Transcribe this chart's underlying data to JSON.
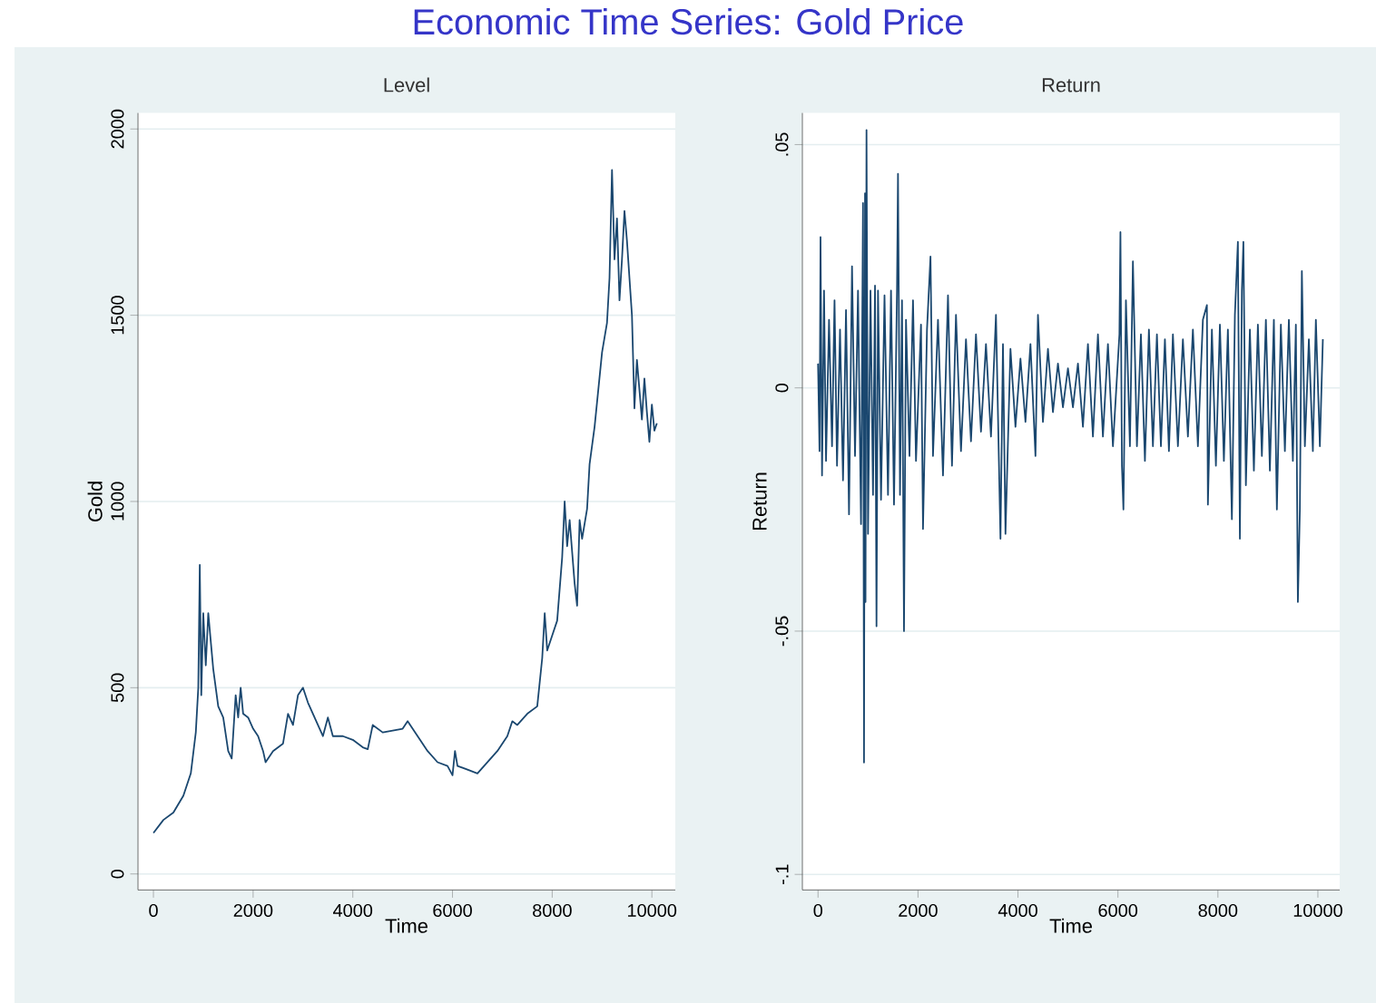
{
  "chart_data": [
    {
      "type": "line",
      "title": "Level",
      "xlabel": "Time",
      "ylabel": "Gold",
      "color": "#1a476f",
      "grid": "y",
      "marker": "none",
      "line_style": "solid",
      "annotations": [
        "Economic Time Series: Gold Price"
      ],
      "xlim": [
        -310,
        10470
      ],
      "ylim": [
        -43,
        2043
      ],
      "xticks": [
        0,
        2000,
        4000,
        6000,
        8000,
        10000
      ],
      "yticks": [
        0,
        500,
        1000,
        1500,
        2000
      ],
      "x": [
        0,
        200,
        400,
        600,
        750,
        850,
        900,
        930,
        960,
        1000,
        1050,
        1100,
        1200,
        1300,
        1400,
        1500,
        1570,
        1650,
        1700,
        1750,
        1800,
        1900,
        2000,
        2100,
        2200,
        2250,
        2400,
        2600,
        2700,
        2800,
        2900,
        3000,
        3100,
        3300,
        3400,
        3500,
        3600,
        3800,
        4000,
        4200,
        4300,
        4400,
        4600,
        4800,
        5000,
        5100,
        5300,
        5500,
        5700,
        5900,
        6000,
        6050,
        6100,
        6300,
        6500,
        6700,
        6900,
        7100,
        7200,
        7300,
        7500,
        7700,
        7800,
        7850,
        7900,
        8000,
        8100,
        8200,
        8250,
        8300,
        8350,
        8450,
        8500,
        8550,
        8600,
        8700,
        8750,
        8850,
        9000,
        9100,
        9150,
        9200,
        9250,
        9300,
        9350,
        9400,
        9450,
        9500,
        9600,
        9650,
        9700,
        9800,
        9850,
        9900,
        9950,
        10000,
        10050,
        10100
      ],
      "values": [
        110,
        145,
        165,
        210,
        270,
        380,
        500,
        830,
        480,
        700,
        560,
        700,
        550,
        450,
        420,
        330,
        310,
        480,
        420,
        500,
        430,
        420,
        390,
        370,
        330,
        300,
        330,
        350,
        430,
        400,
        480,
        500,
        460,
        400,
        370,
        420,
        370,
        370,
        360,
        340,
        335,
        400,
        380,
        385,
        390,
        410,
        370,
        330,
        300,
        290,
        265,
        330,
        290,
        280,
        270,
        300,
        330,
        370,
        410,
        400,
        430,
        450,
        580,
        700,
        600,
        640,
        680,
        850,
        1000,
        880,
        950,
        780,
        720,
        950,
        900,
        980,
        1100,
        1200,
        1400,
        1480,
        1600,
        1890,
        1650,
        1760,
        1540,
        1650,
        1780,
        1700,
        1500,
        1250,
        1380,
        1220,
        1330,
        1240,
        1160,
        1260,
        1190,
        1210
      ]
    },
    {
      "type": "line",
      "title": "Return",
      "xlabel": "Time",
      "ylabel": "Return",
      "color": "#1a476f",
      "grid": "y",
      "marker": "none",
      "line_style": "solid",
      "xlim": [
        -313,
        10437
      ],
      "ylim": [
        -0.1032,
        0.0565
      ],
      "xticks": [
        0,
        2000,
        4000,
        6000,
        8000,
        10000
      ],
      "yticks": [
        {
          "value": -0.1,
          "label": "-.1"
        },
        {
          "value": -0.05,
          "label": "-.05"
        },
        {
          "value": 0,
          "label": "0"
        },
        {
          "value": 0.05,
          "label": ".05"
        }
      ],
      "x": [
        0,
        30,
        50,
        80,
        120,
        160,
        220,
        280,
        330,
        380,
        440,
        500,
        560,
        620,
        680,
        740,
        800,
        860,
        900,
        920,
        940,
        950,
        970,
        1000,
        1050,
        1100,
        1140,
        1170,
        1200,
        1260,
        1330,
        1400,
        1460,
        1520,
        1580,
        1600,
        1640,
        1680,
        1720,
        1760,
        1830,
        1900,
        1960,
        2060,
        2100,
        2180,
        2250,
        2300,
        2400,
        2500,
        2600,
        2680,
        2760,
        2860,
        2960,
        3060,
        3160,
        3260,
        3360,
        3460,
        3560,
        3650,
        3700,
        3750,
        3850,
        3950,
        4050,
        4150,
        4250,
        4350,
        4400,
        4500,
        4600,
        4700,
        4800,
        4900,
        5000,
        5100,
        5200,
        5300,
        5400,
        5500,
        5600,
        5700,
        5800,
        5900,
        6030,
        6050,
        6080,
        6110,
        6160,
        6240,
        6300,
        6380,
        6460,
        6540,
        6620,
        6700,
        6780,
        6860,
        6940,
        7020,
        7100,
        7200,
        7300,
        7400,
        7500,
        7600,
        7700,
        7780,
        7800,
        7880,
        7960,
        8040,
        8120,
        8200,
        8280,
        8340,
        8400,
        8440,
        8480,
        8510,
        8560,
        8640,
        8720,
        8800,
        8880,
        8960,
        9040,
        9120,
        9180,
        9260,
        9340,
        9420,
        9500,
        9560,
        9600,
        9640,
        9680,
        9740,
        9820,
        9900,
        9960,
        10040,
        10100
      ],
      "values": [
        0.005,
        -0.013,
        0.031,
        -0.018,
        0.02,
        -0.015,
        0.014,
        -0.012,
        0.018,
        -0.016,
        0.012,
        -0.019,
        0.016,
        -0.026,
        0.025,
        -0.014,
        0.02,
        -0.028,
        0.038,
        -0.077,
        0.04,
        -0.044,
        0.053,
        -0.03,
        0.02,
        -0.022,
        0.021,
        -0.049,
        0.02,
        -0.023,
        0.019,
        -0.022,
        0.02,
        -0.024,
        0.02,
        0.044,
        -0.022,
        0.018,
        -0.05,
        0.014,
        -0.014,
        0.018,
        -0.015,
        0.013,
        -0.029,
        0.012,
        0.027,
        -0.014,
        0.014,
        -0.018,
        0.019,
        -0.016,
        0.015,
        -0.013,
        0.01,
        -0.011,
        0.011,
        -0.009,
        0.009,
        -0.01,
        0.015,
        -0.031,
        0.009,
        -0.03,
        0.008,
        -0.008,
        0.006,
        -0.007,
        0.009,
        -0.014,
        0.015,
        -0.007,
        0.008,
        -0.005,
        0.005,
        -0.004,
        0.004,
        -0.004,
        0.005,
        -0.008,
        0.009,
        -0.01,
        0.011,
        -0.01,
        0.009,
        -0.012,
        0.011,
        0.032,
        -0.016,
        -0.025,
        0.018,
        -0.012,
        0.026,
        -0.012,
        0.011,
        -0.015,
        0.012,
        -0.012,
        0.011,
        -0.012,
        0.01,
        -0.013,
        0.011,
        -0.012,
        0.01,
        -0.01,
        0.012,
        -0.012,
        0.014,
        0.017,
        -0.024,
        0.012,
        -0.016,
        0.013,
        -0.015,
        0.012,
        -0.027,
        0.015,
        0.03,
        -0.031,
        0.02,
        0.03,
        -0.02,
        0.012,
        -0.017,
        0.013,
        -0.014,
        0.014,
        -0.017,
        0.014,
        -0.025,
        0.013,
        -0.013,
        0.014,
        -0.015,
        0.013,
        -0.044,
        -0.025,
        0.024,
        -0.012,
        0.01,
        -0.013,
        0.014,
        -0.012,
        0.01
      ]
    }
  ]
}
